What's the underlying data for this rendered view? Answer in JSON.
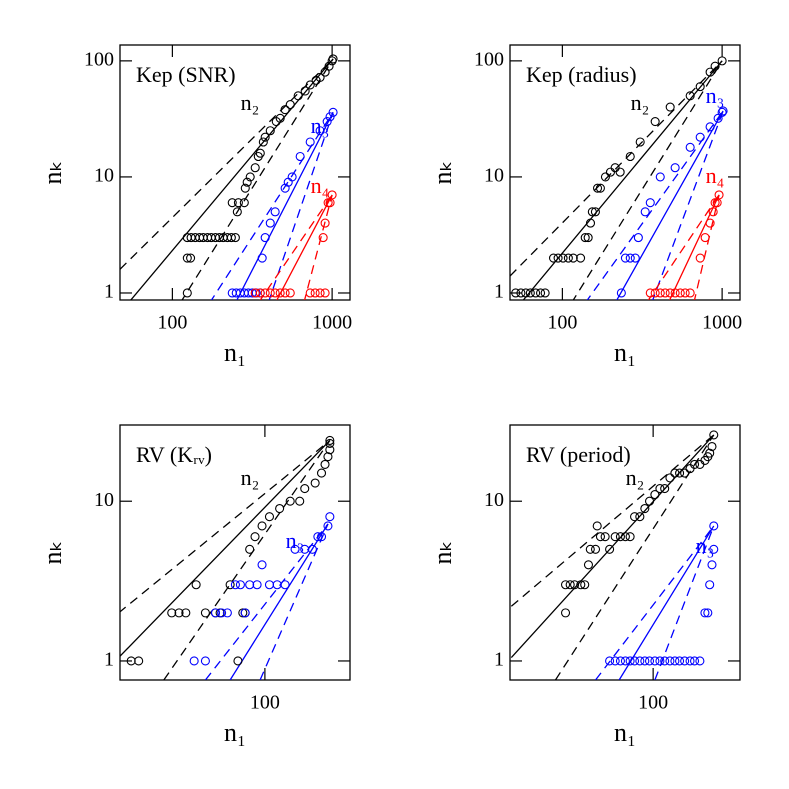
{
  "chart_data": [
    {
      "type": "scatter",
      "title": "Kep (SNR)",
      "xlabel": "n₁",
      "ylabel": "nₖ",
      "xscale": "log",
      "yscale": "log",
      "xlim": [
        47,
        1294
      ],
      "ylim": [
        0.87,
        137
      ],
      "xticks": [
        100,
        1000
      ],
      "yticks": [
        1,
        10,
        100
      ],
      "series": [
        {
          "name": "n₂",
          "color": "#000000",
          "x": [
            124,
            124,
            130,
            124,
            131,
            139,
            148,
            156,
            166,
            175,
            186,
            197,
            208,
            221,
            234,
            248,
            255,
            237,
            259,
            282,
            286,
            294,
            307,
            330,
            345,
            355,
            371,
            381,
            410,
            447,
            473,
            508,
            547,
            613,
            678,
            729,
            794,
            841,
            904,
            957,
            1000,
            1014
          ],
          "y": [
            1,
            2,
            2,
            3,
            3,
            3,
            3,
            3,
            3,
            3,
            3,
            3,
            3,
            3,
            3,
            3,
            5,
            6,
            6,
            6,
            8,
            9,
            10,
            12,
            15,
            16,
            20,
            22,
            25,
            30,
            32,
            38,
            42,
            50,
            55,
            62,
            68,
            72,
            80,
            90,
            100,
            104
          ]
        },
        {
          "name": "n₃",
          "color": "#0000ff",
          "x": [
            237,
            251,
            266,
            282,
            299,
            316,
            335,
            355,
            365,
            381,
            410,
            440,
            508,
            531,
            562,
            631,
            729,
            841,
            931,
            971,
            1014
          ],
          "y": [
            1,
            1,
            1,
            1,
            1,
            1,
            1,
            1,
            2,
            3,
            4,
            5,
            8,
            9,
            10,
            15,
            20,
            25,
            30,
            33,
            36
          ]
        },
        {
          "name": "n₄",
          "color": "#ff0000",
          "x": [
            330,
            355,
            381,
            410,
            440,
            473,
            508,
            547,
            729,
            783,
            841,
            904,
            879,
            904,
            944,
            971,
            1000
          ],
          "y": [
            1,
            1,
            1,
            1,
            1,
            1,
            1,
            1,
            1,
            1,
            1,
            1,
            3,
            4,
            6,
            6,
            7
          ]
        }
      ],
      "lines": [
        {
          "color": "#000000",
          "style": "solid",
          "x": [
            53,
            1014
          ],
          "y": [
            0.82,
            104
          ]
        },
        {
          "color": "#000000",
          "style": "dashed",
          "x": [
            47,
            1014
          ],
          "y": [
            1.6,
            104
          ]
        },
        {
          "color": "#000000",
          "style": "dashed",
          "x": [
            112,
            1014
          ],
          "y": [
            0.82,
            104
          ]
        },
        {
          "color": "#0000ff",
          "style": "solid",
          "x": [
            248,
            1014
          ],
          "y": [
            0.82,
            36
          ]
        },
        {
          "color": "#0000ff",
          "style": "dashed",
          "x": [
            171,
            1014
          ],
          "y": [
            0.82,
            36
          ]
        },
        {
          "color": "#0000ff",
          "style": "dashed",
          "x": [
            398,
            1014
          ],
          "y": [
            0.82,
            36
          ]
        },
        {
          "color": "#ff0000",
          "style": "solid",
          "x": [
            441,
            1000
          ],
          "y": [
            0.82,
            7
          ]
        },
        {
          "color": "#ff0000",
          "style": "dashed",
          "x": [
            345,
            1000
          ],
          "y": [
            0.82,
            7
          ]
        },
        {
          "color": "#ff0000",
          "style": "dashed",
          "x": [
            665,
            1000
          ],
          "y": [
            0.82,
            7
          ]
        }
      ]
    },
    {
      "type": "scatter",
      "title": "Kep (radius)",
      "xlabel": "n₁",
      "ylabel": "nₖ",
      "xscale": "log",
      "yscale": "log",
      "xlim": [
        47,
        1294
      ],
      "ylim": [
        0.87,
        137
      ],
      "xticks": [
        100,
        1000
      ],
      "yticks": [
        1,
        10,
        100
      ],
      "series": [
        {
          "name": "n₂",
          "color": "#000000",
          "x": [
            51,
            55,
            59,
            63,
            68,
            73,
            78,
            88,
            94,
            101,
            109,
            117,
            130,
            139,
            145,
            150,
            154,
            161,
            166,
            173,
            186,
            200,
            214,
            230,
            266,
            307,
            381,
            473,
            631,
            729,
            841,
            904,
            1000
          ],
          "y": [
            1,
            1,
            1,
            1,
            1,
            1,
            1,
            2,
            2,
            2,
            2,
            2,
            2,
            3,
            3,
            4,
            5,
            5,
            8,
            8,
            10,
            11,
            12,
            11,
            15,
            20,
            30,
            40,
            50,
            60,
            80,
            90,
            100
          ]
        },
        {
          "name": "n₃",
          "color": "#0000ff",
          "x": [
            234,
            248,
            266,
            286,
            299,
            330,
            355,
            410,
            508,
            631,
            729,
            841,
            944,
            1000,
            1014
          ],
          "y": [
            1,
            2,
            2,
            2,
            3,
            5,
            6,
            10,
            12,
            18,
            22,
            27,
            32,
            36,
            37
          ]
        },
        {
          "name": "n₄",
          "color": "#ff0000",
          "x": [
            355,
            381,
            410,
            440,
            473,
            508,
            547,
            587,
            631,
            729,
            783,
            841,
            879,
            904,
            931,
            957
          ],
          "y": [
            1,
            1,
            1,
            1,
            1,
            1,
            1,
            1,
            1,
            2,
            3,
            4,
            5,
            6,
            6,
            7
          ]
        }
      ],
      "lines": [
        {
          "color": "#000000",
          "style": "solid",
          "x": [
            55,
            1000
          ],
          "y": [
            0.82,
            100
          ]
        },
        {
          "color": "#000000",
          "style": "dashed",
          "x": [
            47,
            1000
          ],
          "y": [
            1.4,
            100
          ]
        },
        {
          "color": "#000000",
          "style": "dashed",
          "x": [
            114,
            1000
          ],
          "y": [
            0.82,
            100
          ]
        },
        {
          "color": "#0000ff",
          "style": "solid",
          "x": [
            214,
            1014
          ],
          "y": [
            0.82,
            37
          ]
        },
        {
          "color": "#0000ff",
          "style": "dashed",
          "x": [
            139,
            1014
          ],
          "y": [
            0.82,
            37
          ]
        },
        {
          "color": "#0000ff",
          "style": "dashed",
          "x": [
            362,
            1014
          ],
          "y": [
            0.82,
            37
          ]
        },
        {
          "color": "#ff0000",
          "style": "solid",
          "x": [
            460,
            957
          ],
          "y": [
            0.82,
            7
          ]
        },
        {
          "color": "#ff0000",
          "style": "dashed",
          "x": [
            336,
            957
          ],
          "y": [
            0.82,
            7
          ]
        },
        {
          "color": "#ff0000",
          "style": "dashed",
          "x": [
            665,
            957
          ],
          "y": [
            0.82,
            7
          ]
        }
      ]
    },
    {
      "type": "scatter",
      "title": "RV (Kᵣᵥ)",
      "xlabel": "n₁",
      "ylabel": "nₖ",
      "xscale": "log",
      "yscale": "log",
      "xlim": [
        21.3,
        248
      ],
      "ylim": [
        0.76,
        30
      ],
      "xticks": [
        100
      ],
      "yticks": [
        1,
        10
      ],
      "series": [
        {
          "name": "n₂",
          "color": "#000000",
          "x": [
            24,
            26,
            37,
            40,
            43,
            48,
            53,
            59,
            62,
            69,
            75,
            79,
            81,
            85,
            90,
            97,
            105,
            117,
            131,
            145,
            153,
            171,
            183,
            190,
            196,
            200,
            200,
            200
          ],
          "y": [
            1,
            1,
            2,
            2,
            2,
            3,
            2,
            2,
            2,
            3,
            1,
            2,
            2,
            5,
            6,
            7,
            8,
            9,
            10,
            10,
            12,
            13,
            15,
            17,
            19,
            21,
            23,
            24
          ]
        },
        {
          "name": "n₃",
          "color": "#0000ff",
          "x": [
            47,
            53,
            59,
            63,
            67,
            73,
            77,
            81,
            85,
            92,
            97,
            105,
            114,
            124,
            138,
            153,
            166,
            176,
            183,
            196,
            200
          ],
          "y": [
            1,
            1,
            2,
            2,
            2,
            3,
            3,
            2,
            3,
            3,
            4,
            3,
            3,
            3,
            5,
            5,
            5,
            6,
            6,
            7,
            8
          ]
        }
      ],
      "lines": [
        {
          "color": "#000000",
          "style": "solid",
          "x": [
            21,
            200
          ],
          "y": [
            1.05,
            24
          ]
        },
        {
          "color": "#000000",
          "style": "dashed",
          "x": [
            21,
            200
          ],
          "y": [
            2.0,
            24
          ]
        },
        {
          "color": "#000000",
          "style": "dashed",
          "x": [
            34,
            200
          ],
          "y": [
            0.76,
            24
          ]
        },
        {
          "color": "#0000ff",
          "style": "solid",
          "x": [
            69,
            196
          ],
          "y": [
            0.76,
            7.2
          ]
        },
        {
          "color": "#0000ff",
          "style": "dashed",
          "x": [
            53,
            196
          ],
          "y": [
            0.76,
            7.2
          ]
        },
        {
          "color": "#0000ff",
          "style": "dashed",
          "x": [
            95,
            196
          ],
          "y": [
            0.76,
            7.2
          ]
        }
      ]
    },
    {
      "type": "scatter",
      "title": "RV (period)",
      "xlabel": "n₁",
      "ylabel": "nₖ",
      "xscale": "log",
      "yscale": "log",
      "xlim": [
        19.7,
        268
      ],
      "ylim": [
        0.76,
        30
      ],
      "xticks": [
        100
      ],
      "yticks": [
        1,
        10
      ],
      "series": [
        {
          "name": "n₂",
          "color": "#000000",
          "x": [
            37,
            37,
            39,
            41,
            44,
            46,
            48,
            49,
            52,
            53,
            55,
            58,
            61,
            65,
            69,
            73,
            77,
            81,
            86,
            91,
            96,
            102,
            108,
            114,
            121,
            128,
            135,
            143,
            152,
            160,
            170,
            180,
            186,
            190,
            195,
            199
          ],
          "y": [
            2,
            3,
            3,
            3,
            3,
            3,
            4,
            5,
            5,
            7,
            6,
            6,
            5,
            6,
            6,
            6,
            6,
            8,
            8,
            9,
            10,
            11,
            12,
            12,
            14,
            15,
            15,
            15,
            16,
            17,
            17,
            18,
            19,
            20,
            22,
            26
          ]
        },
        {
          "name": "n₃",
          "color": "#0000ff",
          "x": [
            61,
            65,
            69,
            73,
            77,
            81,
            86,
            91,
            96,
            102,
            108,
            114,
            121,
            128,
            135,
            143,
            152,
            160,
            170,
            180,
            186,
            190,
            195,
            199,
            199
          ],
          "y": [
            1,
            1,
            1,
            1,
            1,
            1,
            1,
            1,
            1,
            1,
            1,
            1,
            1,
            1,
            1,
            1,
            1,
            1,
            1,
            2,
            2,
            3,
            4,
            5,
            7
          ]
        }
      ],
      "lines": [
        {
          "color": "#000000",
          "style": "solid",
          "x": [
            20,
            199
          ],
          "y": [
            1.05,
            26
          ]
        },
        {
          "color": "#000000",
          "style": "dashed",
          "x": [
            20,
            199
          ],
          "y": [
            2.2,
            26
          ]
        },
        {
          "color": "#000000",
          "style": "dashed",
          "x": [
            33,
            199
          ],
          "y": [
            0.76,
            26
          ]
        },
        {
          "color": "#0000ff",
          "style": "solid",
          "x": [
            68,
            199
          ],
          "y": [
            0.76,
            7
          ]
        },
        {
          "color": "#0000ff",
          "style": "dashed",
          "x": [
            52,
            199
          ],
          "y": [
            0.76,
            7
          ]
        },
        {
          "color": "#0000ff",
          "style": "dashed",
          "x": [
            102,
            199
          ],
          "y": [
            0.76,
            7
          ]
        }
      ]
    }
  ]
}
